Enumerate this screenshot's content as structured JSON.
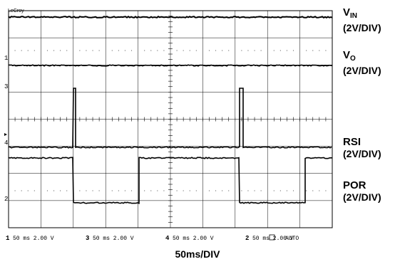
{
  "scope": {
    "brand": "LeCroy",
    "channel_markers": [
      "1",
      "3",
      "4",
      "2"
    ],
    "status_line": [
      {
        "ch": "1",
        "text": "50 ms 2.00 V"
      },
      {
        "ch": "3",
        "text": "50 ms 2.00 V"
      },
      {
        "ch": "4",
        "text": "50 ms 2.00 V"
      },
      {
        "ch": "2",
        "text": "50 ms 2.00 V"
      }
    ],
    "trigger_mode": "AUTO"
  },
  "labels": {
    "vin_name": "V",
    "vin_sub": "IN",
    "vin_scale": "(2V/DIV)",
    "vo_name": "V",
    "vo_sub": "O",
    "vo_scale": "(2V/DIV)",
    "rsi_name": "RSI",
    "rsi_scale": "(2V/DIV)",
    "por_name": "POR",
    "por_scale": "(2V/DIV)",
    "timebase": "50ms/DIV"
  }
}
